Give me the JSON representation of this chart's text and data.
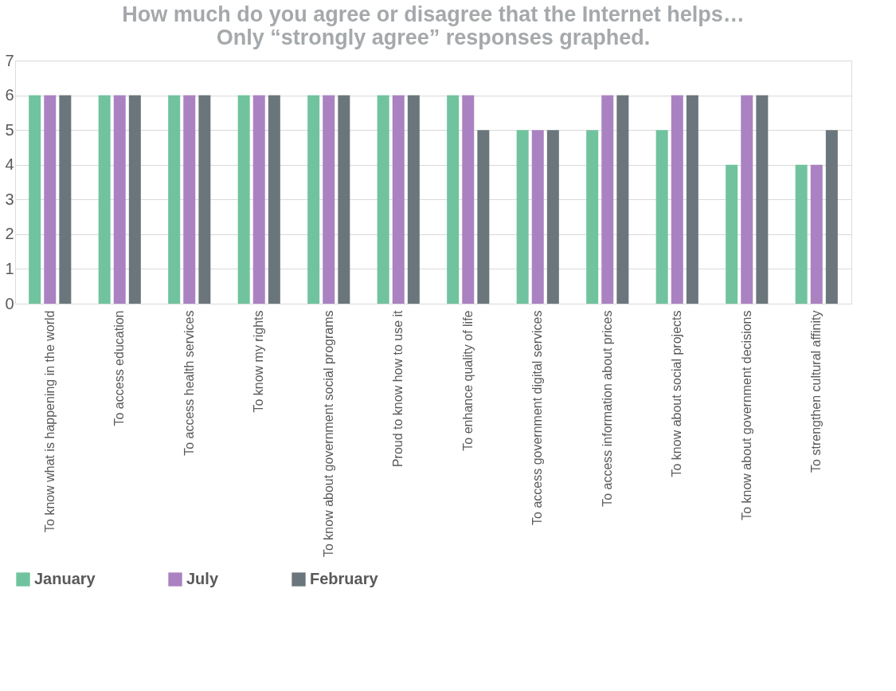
{
  "chart_data": {
    "type": "bar",
    "title": [
      "How much do you agree or disagree that the Internet helps…",
      "Only “strongly agree” responses graphed."
    ],
    "categories": [
      "To know what is happening in the world",
      "To access education",
      "To access health services",
      "To know my rights",
      "To know about government social programs",
      "Proud to know how to use it",
      "To enhance quality of life",
      "To access government digital services",
      "To access information about prices",
      "To know about social projects",
      "To know about government decisions",
      "To strengthen cultural affinity"
    ],
    "series": [
      {
        "name": "January",
        "color": "#70c39e",
        "values": [
          6,
          6,
          6,
          6,
          6,
          6,
          6,
          5,
          5,
          5,
          4,
          4
        ]
      },
      {
        "name": "July",
        "color": "#aa82c2",
        "values": [
          6,
          6,
          6,
          6,
          6,
          6,
          6,
          5,
          6,
          6,
          6,
          4
        ]
      },
      {
        "name": "February",
        "color": "#6b767c",
        "values": [
          6,
          6,
          6,
          6,
          6,
          6,
          5,
          5,
          6,
          6,
          6,
          5
        ]
      }
    ],
    "ylim": [
      0,
      7
    ],
    "yticks": [
      0,
      1,
      2,
      3,
      4,
      5,
      6,
      7
    ],
    "grid": "y",
    "legend": "bottom"
  }
}
